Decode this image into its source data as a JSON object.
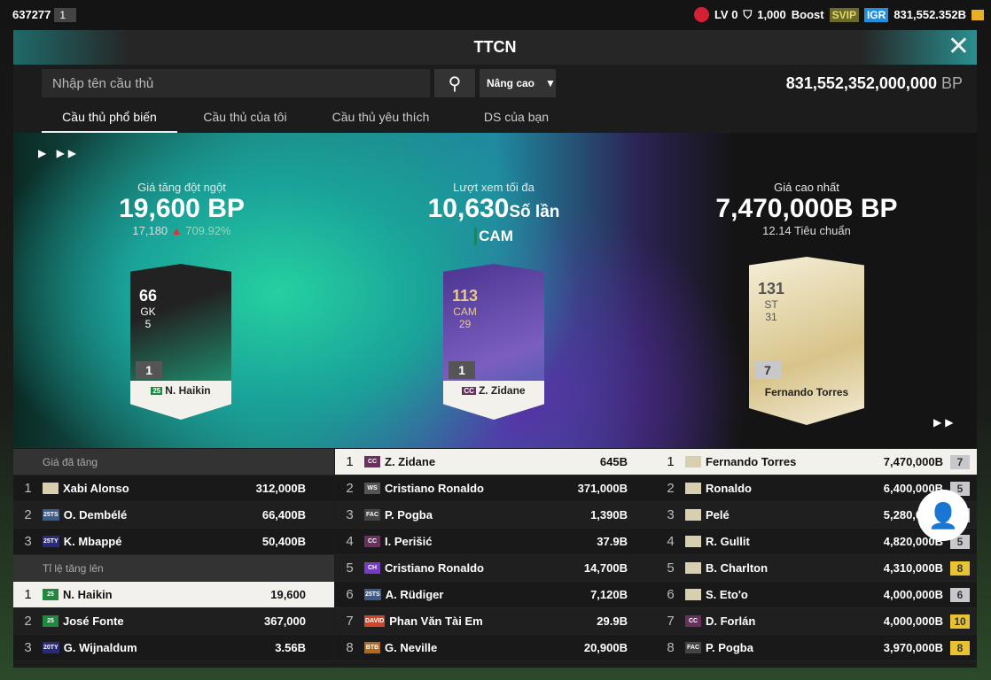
{
  "topbar": {
    "user_id": "637277",
    "count": "1",
    "level": "LV 0",
    "tickets": "1,000",
    "boost": "Boost",
    "svip": "SVIP",
    "igr": "IGR",
    "balance": "831,552.352B"
  },
  "modal": {
    "title": "TTCN",
    "search_placeholder": "Nhập tên cầu thủ",
    "advanced": "Nâng cao",
    "bp_amount": "831,552,352,000,000",
    "bp_unit": "BP",
    "tabs": [
      "Cầu thủ phổ biến",
      "Cầu thủ của tôi",
      "Cầu thủ yêu thích",
      "DS của bạn"
    ]
  },
  "hero": {
    "surge": {
      "label": "Giá tăng đột ngột",
      "value": "19,600 BP",
      "prev": "17,180",
      "pct": "709.92%",
      "card": {
        "ovr": "66",
        "pos": "GK",
        "rank": "5",
        "level": "1",
        "season": "25",
        "name": "N. Haikin"
      }
    },
    "views": {
      "label": "Lượt xem tối đa",
      "value": "10,630",
      "unit": "Số lần",
      "position": "CAM",
      "card": {
        "ovr": "113",
        "pos": "CAM",
        "rank": "29",
        "level": "1",
        "season": "CC",
        "name": "Z. Zidane"
      }
    },
    "highest": {
      "label": "Giá cao nhất",
      "value": "7,470,000B BP",
      "sub": "12.14 Tiêu chuẩn",
      "card": {
        "ovr": "131",
        "pos": "ST",
        "rank": "31",
        "level": "7",
        "name": "Fernando Torres"
      }
    }
  },
  "price_increased": {
    "label": "Giá đã tăng",
    "rows": [
      {
        "rank": "1",
        "season": "ICON",
        "name": "Xabi Alonso",
        "value": "312,000B"
      },
      {
        "rank": "2",
        "season": "25TS",
        "name": "O. Dembélé",
        "value": "66,400B"
      },
      {
        "rank": "3",
        "season": "25TY",
        "name": "K. Mbappé",
        "value": "50,400B"
      }
    ]
  },
  "rate_increase": {
    "label": "Tỉ lệ tăng lên",
    "rows": [
      {
        "rank": "1",
        "season": "25",
        "name": "N. Haikin",
        "value": "19,600"
      },
      {
        "rank": "2",
        "season": "25",
        "name": "José Fonte",
        "value": "367,000"
      },
      {
        "rank": "3",
        "season": "20TY",
        "name": "G. Wijnaldum",
        "value": "3.56B"
      }
    ]
  },
  "most_viewed": [
    {
      "rank": "1",
      "season": "CC",
      "name": "Z. Zidane",
      "value": "645B"
    },
    {
      "rank": "2",
      "season": "WS",
      "name": "Cristiano Ronaldo",
      "value": "371,000B"
    },
    {
      "rank": "3",
      "season": "FAC",
      "name": "P. Pogba",
      "value": "1,390B"
    },
    {
      "rank": "4",
      "season": "CC",
      "name": "I. Perišić",
      "value": "37.9B"
    },
    {
      "rank": "5",
      "season": "CH",
      "name": "Cristiano Ronaldo",
      "value": "14,700B"
    },
    {
      "rank": "6",
      "season": "25TS",
      "name": "A. Rüdiger",
      "value": "7,120B"
    },
    {
      "rank": "7",
      "season": "DAVID",
      "name": "Phan Văn Tài Em",
      "value": "29.9B"
    },
    {
      "rank": "8",
      "season": "BTB",
      "name": "G. Neville",
      "value": "20,900B"
    }
  ],
  "highest_price": [
    {
      "rank": "1",
      "season": "ICON",
      "name": "Fernando Torres",
      "value": "7,470,000B",
      "level": "7"
    },
    {
      "rank": "2",
      "season": "ICON",
      "name": "Ronaldo",
      "value": "6,400,000B",
      "level": "5"
    },
    {
      "rank": "3",
      "season": "ICON",
      "name": "Pelé",
      "value": "5,280,000B",
      "level": ""
    },
    {
      "rank": "4",
      "season": "ICON",
      "name": "R. Gullit",
      "value": "4,820,000B",
      "level": "5"
    },
    {
      "rank": "5",
      "season": "ICON",
      "name": "B. Charlton",
      "value": "4,310,000B",
      "level": "8"
    },
    {
      "rank": "6",
      "season": "ICON",
      "name": "S. Eto'o",
      "value": "4,000,000B",
      "level": "6"
    },
    {
      "rank": "7",
      "season": "CC",
      "name": "D. Forlán",
      "value": "4,000,000B",
      "level": "10"
    },
    {
      "rank": "8",
      "season": "FAC",
      "name": "P. Pogba",
      "value": "3,970,000B",
      "level": "8"
    }
  ],
  "colors": {
    "season": {
      "ICON": "#d8cfb0",
      "25TS": "#3c5a8a",
      "25TY": "#2a2a7a",
      "25": "#1f8a3f",
      "20TY": "#2a2a7a",
      "CC": "#6a3060",
      "WS": "#555",
      "FAC": "#444",
      "CH": "#7a3ac8",
      "DAVID": "#d0452a",
      "BTB": "#b06a1a"
    },
    "level_gold": "#e8c230",
    "level_silver": "#c8c8cc",
    "surge_up": "#e0303a"
  }
}
